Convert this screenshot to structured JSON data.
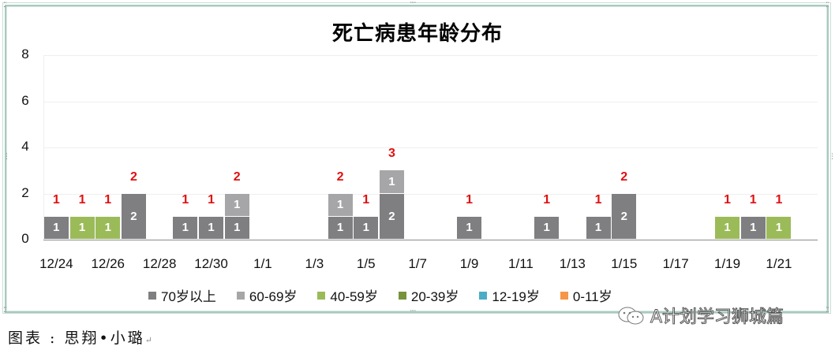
{
  "chart_data": {
    "type": "bar",
    "stacked": true,
    "title": "死亡病患年龄分布",
    "xlabel": "",
    "ylabel": "",
    "ylim": [
      0,
      8
    ],
    "yticks": [
      "0",
      "2",
      "4",
      "6",
      "8"
    ],
    "grid": true,
    "legend_position": "bottom",
    "categories": [
      "12/24",
      "12/25",
      "12/26",
      "12/27",
      "12/28",
      "12/29",
      "12/30",
      "12/31",
      "1/1",
      "1/2",
      "1/3",
      "1/4",
      "1/5",
      "1/6",
      "1/7",
      "1/8",
      "1/9",
      "1/10",
      "1/11",
      "1/12",
      "1/13",
      "1/14",
      "1/15",
      "1/16",
      "1/17",
      "1/18",
      "1/19",
      "1/20",
      "1/21",
      "1/22"
    ],
    "xtick_labels": [
      "12/24",
      "12/26",
      "12/28",
      "12/30",
      "1/1",
      "1/3",
      "1/5",
      "1/7",
      "1/9",
      "1/11",
      "1/13",
      "1/15",
      "1/17",
      "1/19",
      "1/21"
    ],
    "series": [
      {
        "name": "70岁以上",
        "color": "#7f7e80",
        "values": [
          1,
          0,
          0,
          2,
          0,
          1,
          1,
          1,
          0,
          0,
          0,
          1,
          1,
          2,
          0,
          0,
          1,
          0,
          0,
          1,
          0,
          1,
          2,
          0,
          0,
          0,
          0,
          1,
          0,
          0
        ]
      },
      {
        "name": "60-69岁",
        "color": "#a6a5a7",
        "values": [
          0,
          0,
          0,
          0,
          0,
          0,
          0,
          1,
          0,
          0,
          0,
          1,
          0,
          1,
          0,
          0,
          0,
          0,
          0,
          0,
          0,
          0,
          0,
          0,
          0,
          0,
          0,
          0,
          0,
          0
        ]
      },
      {
        "name": "40-59岁",
        "color": "#9bbb59",
        "values": [
          0,
          1,
          1,
          0,
          0,
          0,
          0,
          0,
          0,
          0,
          0,
          0,
          0,
          0,
          0,
          0,
          0,
          0,
          0,
          0,
          0,
          0,
          0,
          0,
          0,
          0,
          1,
          0,
          1,
          0
        ]
      },
      {
        "name": "20-39岁",
        "color": "#77933c",
        "values": [
          0,
          0,
          0,
          0,
          0,
          0,
          0,
          0,
          0,
          0,
          0,
          0,
          0,
          0,
          0,
          0,
          0,
          0,
          0,
          0,
          0,
          0,
          0,
          0,
          0,
          0,
          0,
          0,
          0,
          0
        ]
      },
      {
        "name": "12-19岁",
        "color": "#4bacc6",
        "values": [
          0,
          0,
          0,
          0,
          0,
          0,
          0,
          0,
          0,
          0,
          0,
          0,
          0,
          0,
          0,
          0,
          0,
          0,
          0,
          0,
          0,
          0,
          0,
          0,
          0,
          0,
          0,
          0,
          0,
          0
        ]
      },
      {
        "name": "0-11岁",
        "color": "#f79646",
        "values": [
          0,
          0,
          0,
          0,
          0,
          0,
          0,
          0,
          0,
          0,
          0,
          0,
          0,
          0,
          0,
          0,
          0,
          0,
          0,
          0,
          0,
          0,
          0,
          0,
          0,
          0,
          0,
          0,
          0,
          0
        ]
      }
    ],
    "totals": [
      1,
      1,
      1,
      2,
      0,
      1,
      1,
      2,
      0,
      0,
      0,
      2,
      1,
      3,
      0,
      0,
      1,
      0,
      0,
      1,
      0,
      1,
      2,
      0,
      0,
      0,
      1,
      1,
      1,
      0
    ],
    "total_label_color": "#e01010"
  },
  "caption": {
    "text": "图表 : 思翔•小璐",
    "return_mark": "↵"
  },
  "watermark": {
    "text": "A计划学习狮城篇"
  }
}
